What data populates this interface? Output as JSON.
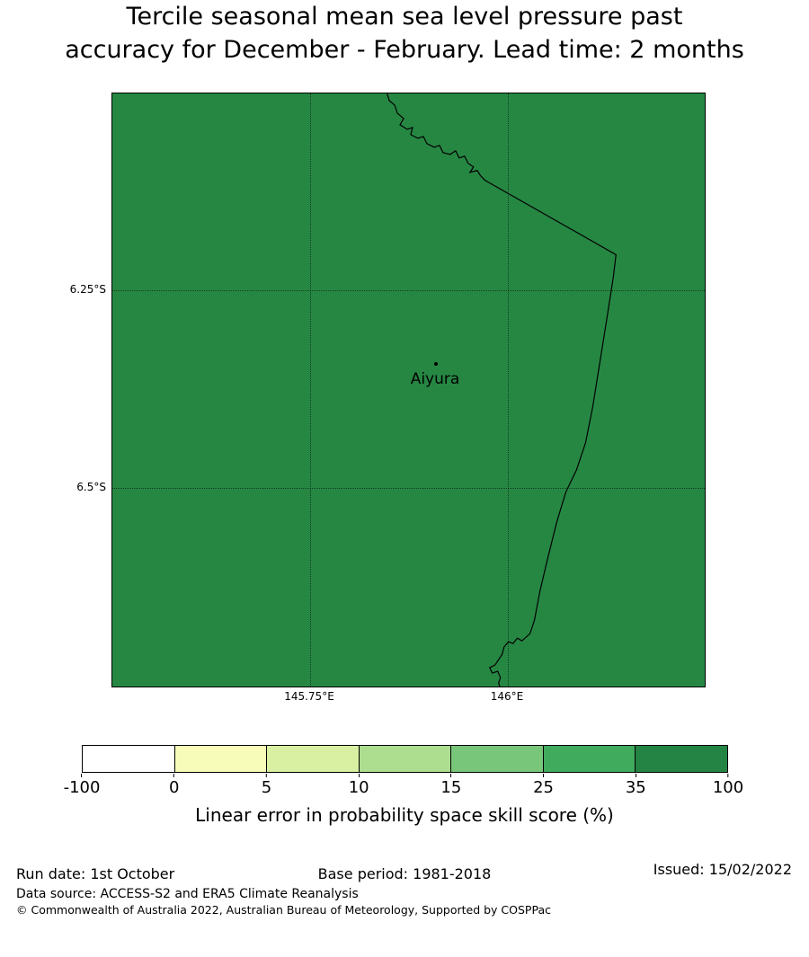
{
  "title": {
    "line1": "Tercile seasonal mean sea level pressure past",
    "line2": "accuracy for December - February. Lead time: 2 months"
  },
  "map": {
    "fill_color": "#268743",
    "station": "Aiyura",
    "y_ticks": [
      "6.25°S",
      "6.5°S"
    ],
    "x_ticks": [
      "145.75°E",
      "146°E"
    ]
  },
  "colorbar": {
    "label": "Linear error in probability space skill score (%)",
    "ticks": [
      "-100",
      "0",
      "5",
      "10",
      "15",
      "25",
      "35",
      "100"
    ],
    "colors": [
      "#ffffff",
      "#f7fcb9",
      "#d9f0a3",
      "#addd8e",
      "#78c679",
      "#41ab5d",
      "#238443"
    ]
  },
  "footer": {
    "run_date": "Run date: 1st October",
    "base_period": "Base period: 1981-2018",
    "issued": "Issued: 15/02/2022",
    "data_source": "Data source: ACCESS-S2 and ERA5 Climate Reanalysis",
    "copyright": "© Commonwealth of Australia 2022, Australian Bureau of Meteorology, Supported by COSPPac"
  },
  "chart_data": {
    "type": "heatmap",
    "title": "Tercile seasonal mean sea level pressure past accuracy for December - February. Lead time: 2 months",
    "colorbar_label": "Linear error in probability space skill score (%)",
    "color_boundaries": [
      -100,
      0,
      5,
      10,
      15,
      25,
      35,
      100
    ],
    "colors": [
      "#ffffff",
      "#f7fcb9",
      "#d9f0a3",
      "#addd8e",
      "#78c679",
      "#41ab5d",
      "#238443"
    ],
    "gridlines": {
      "lat_labels": [
        "6.25°S",
        "6.5°S"
      ],
      "lon_labels": [
        "145.75°E",
        "146°E"
      ]
    },
    "region": {
      "uniform_fill": true,
      "fill_color": "#268743",
      "skill_score_bin": "35 to 100"
    },
    "stations": [
      {
        "name": "Aiyura"
      }
    ],
    "legend_position": "bottom",
    "grid": true
  }
}
